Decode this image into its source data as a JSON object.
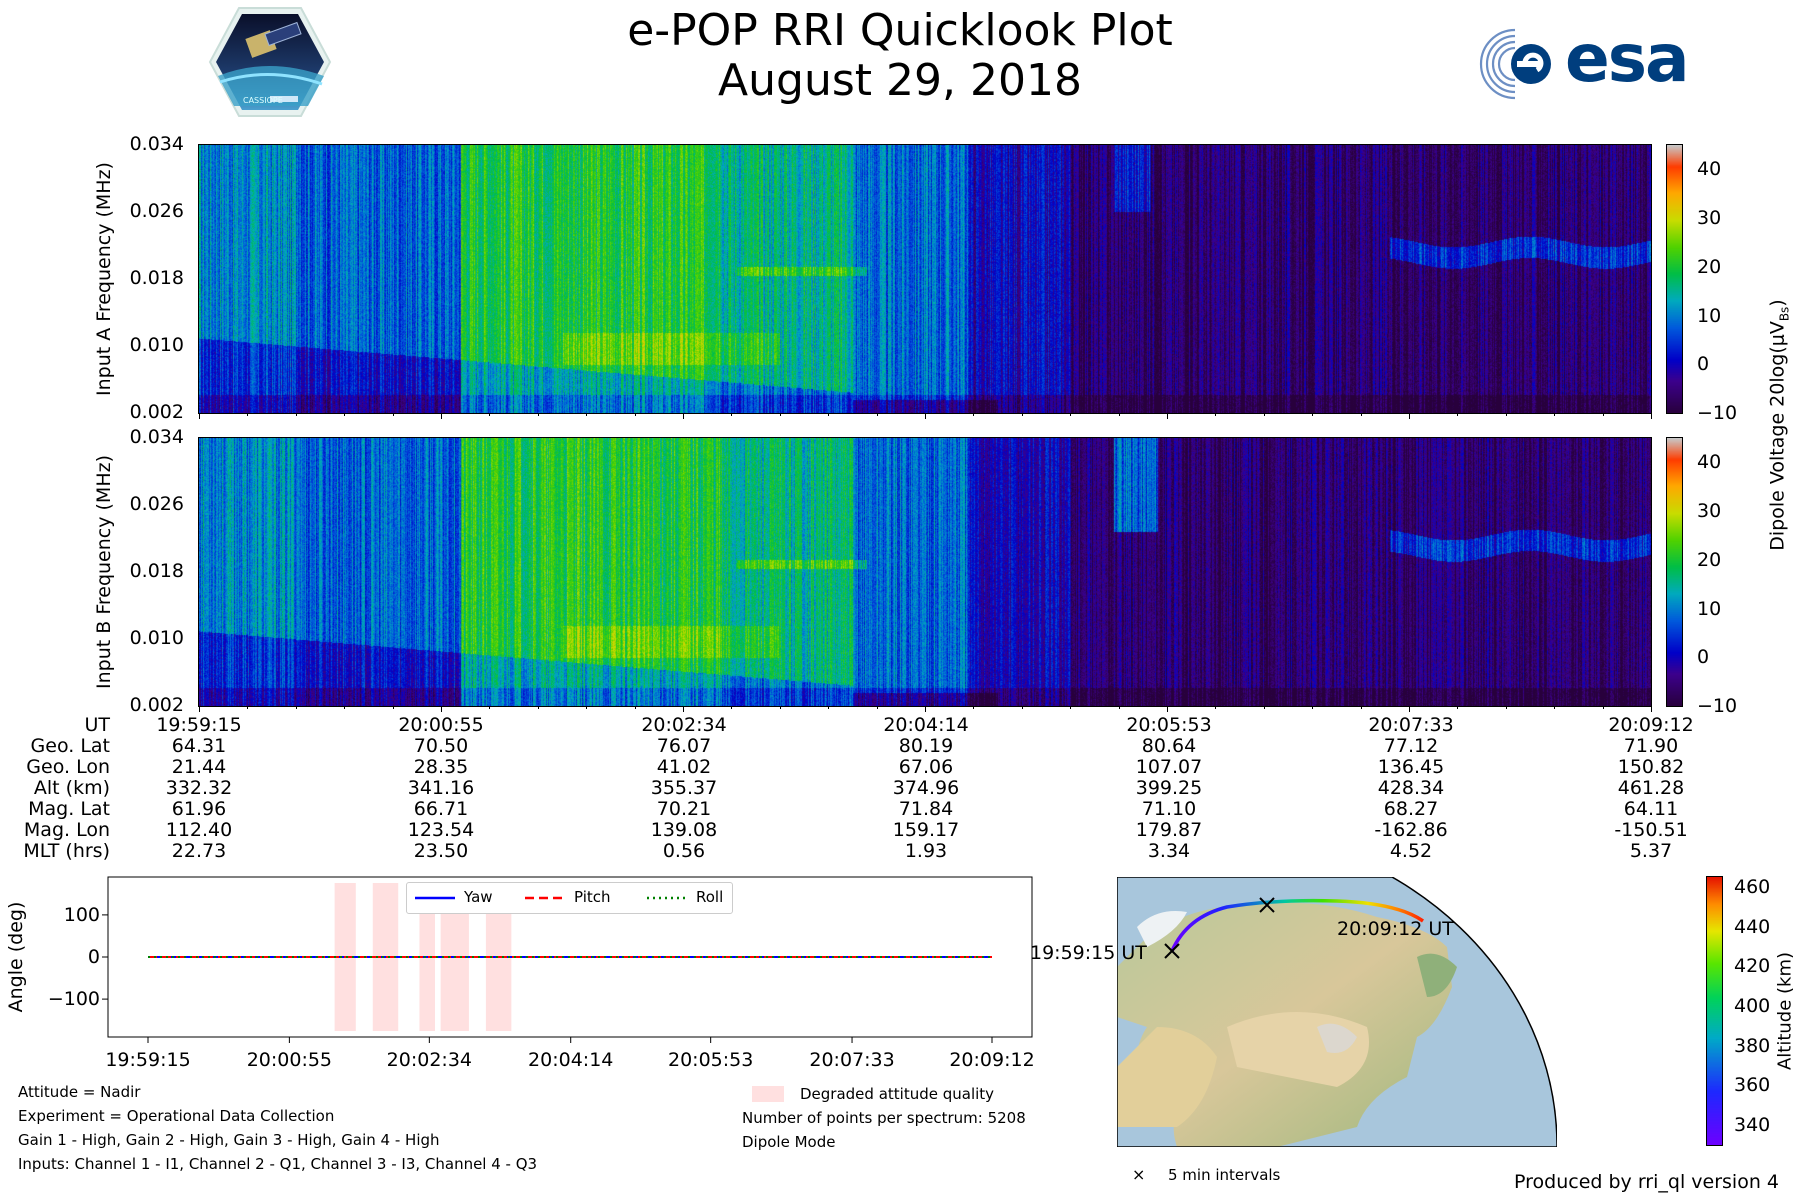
{
  "header": {
    "title": "e-POP RRI Quicklook Plot",
    "date": "August 29, 2018",
    "left_logo": {
      "icon": "cassiope-mission-patch-icon",
      "text": "CASSIOPE"
    },
    "right_logo": {
      "icon": "esa-logo-icon",
      "text": "esa",
      "color": "#003e7e"
    }
  },
  "chart_data": [
    {
      "type": "heatmap",
      "name": "input-a-spectrogram",
      "ylabel": "Input A Frequency (MHz)",
      "yticks": [
        "0.002",
        "0.010",
        "0.018",
        "0.026",
        "0.034"
      ],
      "ylim": [
        0.002,
        0.034
      ],
      "xlim": [
        "19:59:15",
        "20:09:12"
      ]
    },
    {
      "type": "heatmap",
      "name": "input-b-spectrogram",
      "ylabel": "Input B Frequency (MHz)",
      "yticks": [
        "0.002",
        "0.010",
        "0.018",
        "0.026",
        "0.034"
      ],
      "ylim": [
        0.002,
        0.034
      ],
      "xlim": [
        "19:59:15",
        "20:09:12"
      ]
    },
    {
      "type": "line",
      "name": "attitude-angles",
      "ylabel": "Angle (deg)",
      "ylim": [
        -190,
        190
      ],
      "yticks": [
        "100",
        "0",
        "−100"
      ],
      "xticks": [
        "19:59:15",
        "20:00:55",
        "20:02:34",
        "20:04:14",
        "20:05:53",
        "20:07:33",
        "20:09:12"
      ],
      "series": [
        {
          "name": "Yaw",
          "color": "#0000ff",
          "style": "solid",
          "values": [
            0,
            0
          ]
        },
        {
          "name": "Pitch",
          "color": "#ff0000",
          "style": "dashed",
          "values": [
            0,
            0
          ]
        },
        {
          "name": "Roll",
          "color": "#008000",
          "style": "dotted",
          "values": [
            0,
            0
          ]
        }
      ],
      "degraded_attitude_spans": [
        [
          "20:01:27",
          "20:01:42"
        ],
        [
          "20:01:54",
          "20:02:12"
        ],
        [
          "20:02:27",
          "20:02:38"
        ],
        [
          "20:02:42",
          "20:03:02"
        ],
        [
          "20:03:14",
          "20:03:32"
        ]
      ],
      "degraded_color": "#ffe0e0"
    }
  ],
  "colorbar": {
    "label": "Dipole Voltage 20log(μV",
    "label_sub": "Bs",
    "label_end": ")",
    "ticks": [
      "40",
      "30",
      "20",
      "10",
      "0",
      "−10"
    ],
    "range": [
      -10,
      45
    ]
  },
  "ephemeris": {
    "row_labels": [
      "UT",
      "Geo. Lat",
      "Geo. Lon",
      "Alt (km)",
      "Mag. Lat",
      "Mag. Lon",
      "MLT (hrs)"
    ],
    "columns": [
      [
        "19:59:15",
        "64.31",
        "21.44",
        "332.32",
        "61.96",
        "112.40",
        "22.73"
      ],
      [
        "20:00:55",
        "70.50",
        "28.35",
        "341.16",
        "66.71",
        "123.54",
        "23.50"
      ],
      [
        "20:02:34",
        "76.07",
        "41.02",
        "355.37",
        "70.21",
        "139.08",
        "0.56"
      ],
      [
        "20:04:14",
        "80.19",
        "67.06",
        "374.96",
        "71.84",
        "159.17",
        "1.93"
      ],
      [
        "20:05:53",
        "80.64",
        "107.07",
        "399.25",
        "71.10",
        "179.87",
        "3.34"
      ],
      [
        "20:07:33",
        "77.12",
        "136.45",
        "428.34",
        "68.27",
        "-162.86",
        "4.52"
      ],
      [
        "20:09:12",
        "71.90",
        "150.82",
        "461.28",
        "64.11",
        "-150.51",
        "5.37"
      ]
    ]
  },
  "info_left": [
    "Attitude = Nadir",
    "Experiment = Operational Data Collection",
    "Gain 1 - High, Gain 2 - High, Gain 3 - High, Gain 4 - High",
    "Inputs: Channel 1 - I1, Channel 2 - Q1, Channel 3 - I3, Channel 4 - Q3"
  ],
  "info_right": {
    "degraded_legend": "Degraded attitude quality",
    "points": "Number of points per spectrum: 5208",
    "mode": "Dipole Mode"
  },
  "map": {
    "start_label": "19:59:15 UT",
    "end_label": "20:09:12 UT",
    "marker_legend": "5 min intervals",
    "altitude_label": "Altitude (km)",
    "altitude_ticks": [
      "460",
      "440",
      "420",
      "400",
      "380",
      "360",
      "340"
    ],
    "altitude_range": [
      330,
      465
    ]
  },
  "footer": {
    "produced_by": "Produced by rri_ql version 4"
  }
}
